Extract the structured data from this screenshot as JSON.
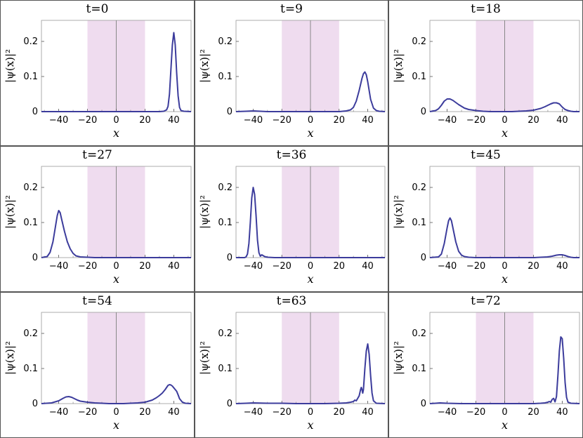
{
  "chart_data": [
    {
      "type": "line",
      "title": "t=0",
      "xlabel": "x",
      "ylabel": "|ψ(x)|²",
      "xlim": [
        -52,
        52
      ],
      "ylim": [
        0,
        0.26
      ],
      "xticks": [
        "-40",
        "-20",
        "0",
        "20",
        "40"
      ],
      "yticks": [
        "0",
        "0.1",
        "0.2"
      ],
      "shaded_region": [
        -20,
        20
      ],
      "x": [
        -52,
        -45,
        -40,
        -35,
        -30,
        -25,
        -20,
        -15,
        -10,
        -5,
        0,
        5,
        10,
        15,
        20,
        25,
        30,
        33,
        35,
        36,
        37,
        38,
        39,
        40,
        41,
        42,
        43,
        44,
        45,
        47,
        52
      ],
      "y": [
        0,
        0,
        0,
        0,
        0,
        0,
        0,
        0,
        0,
        0,
        0,
        0,
        0,
        0,
        0,
        0,
        0,
        0.001,
        0.005,
        0.015,
        0.05,
        0.12,
        0.19,
        0.225,
        0.19,
        0.11,
        0.045,
        0.012,
        0.003,
        0.001,
        0
      ]
    },
    {
      "type": "line",
      "title": "t=9",
      "xlabel": "x",
      "ylabel": "|ψ(x)|²",
      "xlim": [
        -52,
        52
      ],
      "ylim": [
        0,
        0.26
      ],
      "xticks": [
        "-40",
        "-20",
        "0",
        "20",
        "40"
      ],
      "yticks": [
        "0",
        "0.1",
        "0.2"
      ],
      "shaded_region": [
        -20,
        20
      ],
      "x": [
        -52,
        -45,
        -40,
        -35,
        -30,
        -25,
        -20,
        -15,
        -10,
        -5,
        0,
        5,
        10,
        15,
        20,
        25,
        28,
        30,
        32,
        34,
        36,
        37,
        38,
        39,
        40,
        41,
        42,
        44,
        46,
        48,
        52
      ],
      "y": [
        0,
        0.001,
        0.002,
        0.001,
        0,
        0,
        0,
        0,
        0,
        0,
        0,
        0,
        0,
        0,
        0,
        0.002,
        0.005,
        0.012,
        0.03,
        0.06,
        0.095,
        0.108,
        0.113,
        0.105,
        0.085,
        0.06,
        0.035,
        0.01,
        0.003,
        0.001,
        0
      ]
    },
    {
      "type": "line",
      "title": "t=18",
      "xlabel": "x",
      "ylabel": "|ψ(x)|²",
      "xlim": [
        -52,
        52
      ],
      "ylim": [
        0,
        0.26
      ],
      "xticks": [
        "-40",
        "-20",
        "0",
        "20",
        "40"
      ],
      "yticks": [
        "0",
        "0.1",
        "0.2"
      ],
      "shaded_region": [
        -20,
        20
      ],
      "x": [
        -52,
        -48,
        -46,
        -44,
        -42,
        -40,
        -38,
        -36,
        -34,
        -32,
        -30,
        -28,
        -25,
        -20,
        -15,
        -10,
        -5,
        0,
        5,
        10,
        15,
        20,
        25,
        28,
        30,
        32,
        34,
        36,
        38,
        40,
        42,
        44,
        46,
        48,
        52
      ],
      "y": [
        0,
        0.003,
        0.008,
        0.018,
        0.03,
        0.036,
        0.036,
        0.032,
        0.026,
        0.02,
        0.015,
        0.01,
        0.006,
        0.003,
        0.001,
        0,
        0,
        0,
        0,
        0.001,
        0.002,
        0.004,
        0.009,
        0.014,
        0.018,
        0.022,
        0.025,
        0.025,
        0.022,
        0.013,
        0.006,
        0.003,
        0.001,
        0,
        0
      ]
    },
    {
      "type": "line",
      "title": "t=27",
      "xlabel": "x",
      "ylabel": "|ψ(x)|²",
      "xlim": [
        -52,
        52
      ],
      "ylim": [
        0,
        0.26
      ],
      "xticks": [
        "-40",
        "-20",
        "0",
        "20",
        "40"
      ],
      "yticks": [
        "0",
        "0.1",
        "0.2"
      ],
      "shaded_region": [
        -20,
        20
      ],
      "x": [
        -52,
        -48,
        -46,
        -44,
        -42,
        -41,
        -40,
        -39,
        -38,
        -36,
        -34,
        -32,
        -30,
        -28,
        -25,
        -20,
        -15,
        -10,
        0,
        10,
        20,
        30,
        40,
        52
      ],
      "y": [
        0,
        0.003,
        0.015,
        0.045,
        0.095,
        0.12,
        0.134,
        0.128,
        0.11,
        0.075,
        0.045,
        0.025,
        0.012,
        0.005,
        0.002,
        0.001,
        0,
        0,
        0,
        0,
        0,
        0,
        0,
        0
      ]
    },
    {
      "type": "line",
      "title": "t=36",
      "xlabel": "x",
      "ylabel": "|ψ(x)|²",
      "xlim": [
        -52,
        52
      ],
      "ylim": [
        0,
        0.26
      ],
      "xticks": [
        "-40",
        "-20",
        "0",
        "20",
        "40"
      ],
      "yticks": [
        "0",
        "0.1",
        "0.2"
      ],
      "shaded_region": [
        -20,
        20
      ],
      "x": [
        -52,
        -46,
        -45,
        -44,
        -43,
        -42,
        -41,
        -40,
        -39,
        -38,
        -37,
        -36,
        -35,
        -34,
        -32,
        -30,
        -25,
        -20,
        0,
        20,
        40,
        52
      ],
      "y": [
        0,
        0,
        0.002,
        0.01,
        0.04,
        0.1,
        0.17,
        0.2,
        0.18,
        0.12,
        0.05,
        0.014,
        0.004,
        0.008,
        0.003,
        0.001,
        0,
        0,
        0,
        0,
        0,
        0
      ]
    },
    {
      "type": "line",
      "title": "t=45",
      "xlabel": "x",
      "ylabel": "|ψ(x)|²",
      "xlim": [
        -52,
        52
      ],
      "ylim": [
        0,
        0.26
      ],
      "xticks": [
        "-40",
        "-20",
        "0",
        "20",
        "40"
      ],
      "yticks": [
        "0",
        "0.1",
        "0.2"
      ],
      "shaded_region": [
        -20,
        20
      ],
      "x": [
        -52,
        -46,
        -44,
        -42,
        -40,
        -39,
        -38,
        -37,
        -36,
        -34,
        -32,
        -30,
        -28,
        -25,
        -20,
        -10,
        0,
        10,
        20,
        25,
        30,
        33,
        36,
        38,
        40,
        42,
        44,
        46,
        48,
        52
      ],
      "y": [
        0,
        0.002,
        0.01,
        0.04,
        0.085,
        0.105,
        0.113,
        0.105,
        0.085,
        0.045,
        0.018,
        0.007,
        0.003,
        0.001,
        0,
        0,
        0,
        0,
        0,
        0.001,
        0.002,
        0.004,
        0.007,
        0.008,
        0.008,
        0.006,
        0.003,
        0.001,
        0,
        0
      ]
    },
    {
      "type": "line",
      "title": "t=54",
      "xlabel": "x",
      "ylabel": "|ψ(x)|²",
      "xlim": [
        -52,
        52
      ],
      "ylim": [
        0,
        0.26
      ],
      "xticks": [
        "-40",
        "-20",
        "0",
        "20",
        "40"
      ],
      "yticks": [
        "0",
        "0.1",
        "0.2"
      ],
      "shaded_region": [
        -20,
        20
      ],
      "x": [
        -52,
        -45,
        -40,
        -37,
        -35,
        -33,
        -31,
        -29,
        -27,
        -25,
        -20,
        -15,
        -10,
        -5,
        0,
        5,
        10,
        15,
        20,
        25,
        28,
        30,
        32,
        34,
        35,
        36,
        37,
        38,
        39,
        40,
        41,
        42,
        43,
        44,
        46,
        48,
        52
      ],
      "y": [
        0,
        0.002,
        0.008,
        0.015,
        0.019,
        0.02,
        0.018,
        0.014,
        0.01,
        0.007,
        0.004,
        0.002,
        0.001,
        0,
        0,
        0,
        0.001,
        0.002,
        0.004,
        0.01,
        0.017,
        0.023,
        0.03,
        0.04,
        0.046,
        0.052,
        0.054,
        0.053,
        0.05,
        0.045,
        0.04,
        0.035,
        0.025,
        0.014,
        0.004,
        0.001,
        0
      ]
    },
    {
      "type": "line",
      "title": "t=63",
      "xlabel": "x",
      "ylabel": "|ψ(x)|²",
      "xlim": [
        -52,
        52
      ],
      "ylim": [
        0,
        0.26
      ],
      "xticks": [
        "-40",
        "-20",
        "0",
        "20",
        "40"
      ],
      "yticks": [
        "0",
        "0.1",
        "0.2"
      ],
      "shaded_region": [
        -20,
        20
      ],
      "x": [
        -52,
        -45,
        -40,
        -30,
        -20,
        -10,
        0,
        10,
        20,
        25,
        28,
        30,
        31,
        32,
        33,
        34,
        35,
        35.5,
        36,
        36.5,
        37,
        37.5,
        38,
        39,
        40,
        41,
        42,
        43,
        44,
        46,
        52
      ],
      "y": [
        0,
        0.001,
        0.002,
        0.001,
        0.001,
        0,
        0,
        0,
        0.001,
        0.002,
        0.004,
        0.006,
        0.01,
        0.008,
        0.015,
        0.022,
        0.04,
        0.046,
        0.04,
        0.03,
        0.04,
        0.07,
        0.1,
        0.15,
        0.17,
        0.14,
        0.08,
        0.03,
        0.008,
        0.001,
        0
      ]
    },
    {
      "type": "line",
      "title": "t=72",
      "xlabel": "x",
      "ylabel": "|ψ(x)|²",
      "xlim": [
        -52,
        52
      ],
      "ylim": [
        0,
        0.26
      ],
      "xticks": [
        "-40",
        "-20",
        "0",
        "20",
        "40"
      ],
      "yticks": [
        "0",
        "0.1",
        "0.2"
      ],
      "shaded_region": [
        -20,
        20
      ],
      "x": [
        -52,
        -48,
        -45,
        -40,
        -30,
        -20,
        -10,
        0,
        10,
        20,
        25,
        28,
        30,
        31,
        32,
        33,
        34,
        35,
        36,
        37,
        38,
        39,
        40,
        41,
        42,
        43,
        44,
        46,
        52
      ],
      "y": [
        0,
        0.001,
        0.002,
        0.001,
        0,
        0,
        0,
        0,
        0,
        0,
        0.001,
        0.002,
        0.004,
        0.006,
        0.004,
        0.012,
        0.015,
        0.005,
        0.02,
        0.08,
        0.15,
        0.19,
        0.185,
        0.13,
        0.06,
        0.018,
        0.004,
        0.001,
        0
      ]
    }
  ],
  "colors": {
    "line": "#3c3c9c",
    "shade": "#efdcef",
    "axis": "#666666"
  }
}
